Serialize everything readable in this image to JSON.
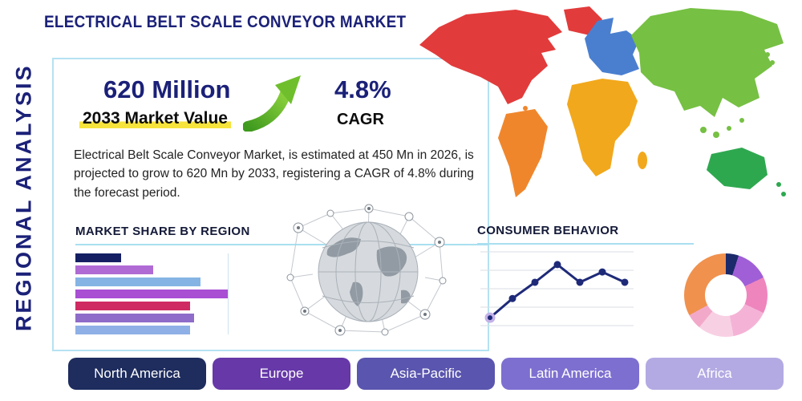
{
  "title": "ELECTRICAL BELT SCALE CONVEYOR MARKET",
  "vertical_label": "REGIONAL ANALYSIS",
  "theme": {
    "navy": "#1b2178",
    "underline-blue": "#a9dff0",
    "arrow-green": "#62b32e",
    "highlight-yellow": "#f6e33b"
  },
  "stats": {
    "market_value": "620 Million",
    "market_value_caption": "2033 Market Value",
    "cagr_value": "4.8%",
    "cagr_label": "CAGR",
    "description": "Electrical Belt Scale Conveyor Market, is estimated at 450 Mn in 2026, is projected to grow to 620 Mn by 2033, registering a CAGR of 4.8% during the forecast period."
  },
  "market_share": {
    "heading": "MARKET SHARE BY REGION"
  },
  "consumer_behavior": {
    "heading": "CONSUMER BEHAVIOR"
  },
  "regions": [
    {
      "label": "North America",
      "color": "#1e2c5e"
    },
    {
      "label": "Europe",
      "color": "#6638a8"
    },
    {
      "label": "Asia-Pacific",
      "color": "#5a55ae"
    },
    {
      "label": "Latin America",
      "color": "#7d6fd0"
    },
    {
      "label": "Africa",
      "color": "#b3aae3"
    }
  ],
  "map": {
    "colors": {
      "north_america": "#e23b3b",
      "greenland": "#e23b3b",
      "south_america": "#f0862c",
      "europe": "#4a7fd0",
      "africa": "#f2a81c",
      "asia": "#76c043",
      "australia": "#2ea84f"
    }
  },
  "chart_data": [
    {
      "type": "bar",
      "title": "MARKET SHARE BY REGION",
      "orientation": "horizontal",
      "scale": "relative-percent (axes unlabeled)",
      "values": [
        30,
        51,
        82,
        100,
        75,
        78,
        75
      ],
      "colors": [
        "#141f63",
        "#b06ad4",
        "#85b4e4",
        "#a84fd4",
        "#cf2b62",
        "#8f6cc9",
        "#8fb0e6"
      ],
      "xlim": [
        0,
        100
      ]
    },
    {
      "type": "line",
      "title": "CONSUMER BEHAVIOR",
      "scale": "relative-percent (axes unlabeled)",
      "x": [
        1,
        2,
        3,
        4,
        5,
        6,
        7
      ],
      "values": [
        14,
        40,
        62,
        86,
        62,
        76,
        62
      ],
      "line_color": "#1e2a78",
      "start_point_color": "#c3b2e8",
      "grid": true
    },
    {
      "type": "donut",
      "slices": [
        {
          "value": 5,
          "color": "#1b2a6b"
        },
        {
          "value": 13,
          "color": "#a05fd6"
        },
        {
          "value": 14,
          "color": "#ef85bd"
        },
        {
          "value": 15,
          "color": "#f4b3d6"
        },
        {
          "value": 14,
          "color": "#f8d0e4"
        },
        {
          "value": 6,
          "color": "#f2a9c9"
        },
        {
          "value": 33,
          "color": "#f0914e"
        }
      ]
    }
  ]
}
